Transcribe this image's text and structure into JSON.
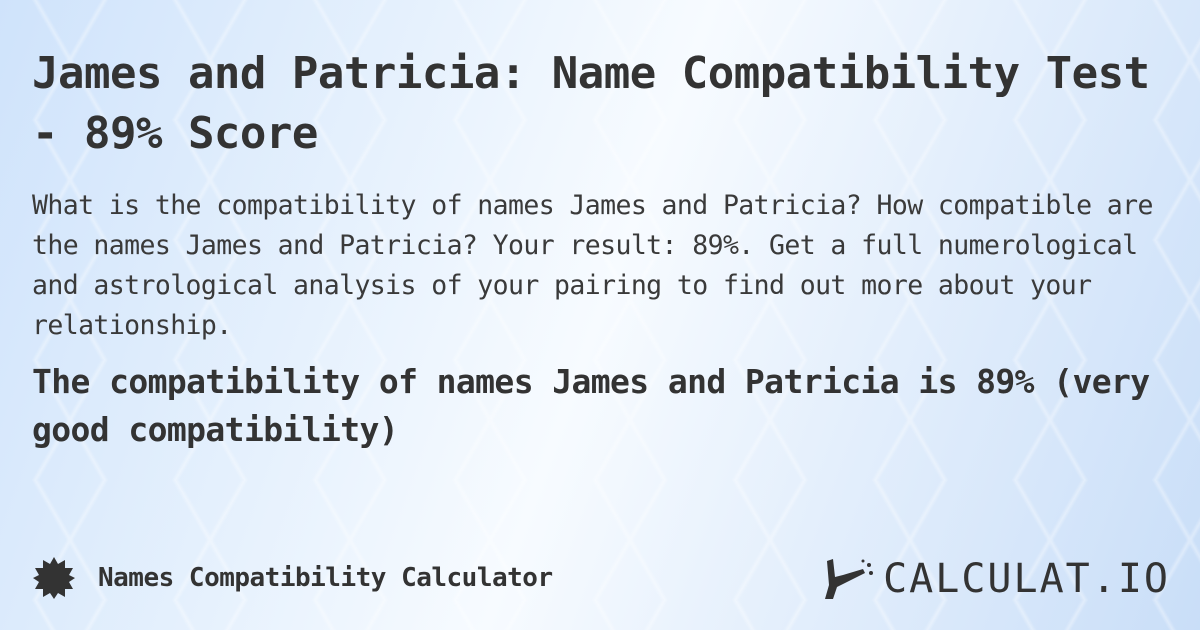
{
  "title": "James and Patricia: Name Compatibility Test - 89% Score",
  "description": "What is the compatibility of names James and Patricia? How compatible are the names James and Patricia? Your result: 89%. Get a full numerological and astrological analysis of your pairing to find out more about your relationship.",
  "result": "The compatibility of names James and Patricia is 89% (very good compatibility)",
  "footer": {
    "calculator_name": "Names Compatibility Calculator",
    "icon": "badge-icon"
  },
  "logo": {
    "text": "CALCULAT.IO"
  }
}
